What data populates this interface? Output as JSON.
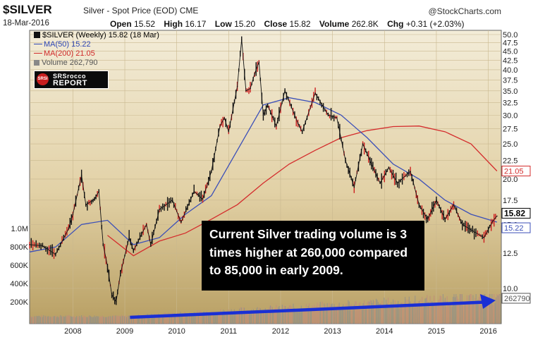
{
  "header": {
    "ticker": "$SILVER",
    "name": "Silver - Spot Price (EOD)",
    "exchange": "CME",
    "brand": "@StockCharts.com",
    "date": "18-Mar-2016",
    "stats": [
      {
        "label": "Open",
        "value": "15.52"
      },
      {
        "label": "High",
        "value": "16.17"
      },
      {
        "label": "Low",
        "value": "15.20"
      },
      {
        "label": "Close",
        "value": "15.82"
      },
      {
        "label": "Volume",
        "value": "262.8K"
      },
      {
        "label": "Chg",
        "value": "+0.31 (+2.03%)"
      }
    ]
  },
  "legend": {
    "main": "$SILVER (Weekly) 15.82 (18 Mar)",
    "ma50": "MA(50) 15.22",
    "ma200": "MA(200) 21.05",
    "volume": "Volume 262,790"
  },
  "logo": {
    "badge": "SRSI",
    "line1": "SRSrocco",
    "line2": "REPORT"
  },
  "annotation": "Current Silver trading volume is 3 times higher at 260,000 compared to 85,000 in early 2009.",
  "colors": {
    "background_top": "#efe7cf",
    "background_bottom": "#b79e62",
    "candle": "#111111",
    "candle_down": "#cc1f1f",
    "ma50": "#3b4fb8",
    "ma200": "#d42d2d",
    "volume": "#8d8d8d",
    "arrow": "#1a2fd4"
  },
  "chart_data": {
    "type": "line",
    "x_axis": {
      "type": "date",
      "ticks": [
        "2008",
        "2009",
        "2010",
        "2011",
        "2012",
        "2013",
        "2014",
        "2015",
        "2016"
      ],
      "range": [
        "2007-03-01",
        "2016-04-01"
      ]
    },
    "y_axis": {
      "side": "right",
      "scale": "log",
      "ticks": [
        "50.0",
        "47.5",
        "45.0",
        "42.5",
        "40.0",
        "37.5",
        "35.0",
        "32.5",
        "30.0",
        "27.5",
        "25.0",
        "22.5",
        "20.0",
        "17.5",
        "15.0",
        "12.5",
        "10.0"
      ],
      "range": [
        8.5,
        51
      ]
    },
    "volume_axis": {
      "side": "left",
      "ticks": [
        "1.0M",
        "800K",
        "600K",
        "400K",
        "200K"
      ]
    },
    "price_labels": {
      "close": "15.82",
      "ma50": "15.22",
      "ma200": "21.05",
      "volume": "262790"
    },
    "grid": true,
    "legend_position": "top-left",
    "series": [
      {
        "name": "$SILVER (Weekly)",
        "points": [
          [
            "2007-03",
            13.2
          ],
          [
            "2007-06",
            13.1
          ],
          [
            "2007-09",
            12.4
          ],
          [
            "2007-12",
            14.6
          ],
          [
            "2008-01",
            16.0
          ],
          [
            "2008-03",
            20.5
          ],
          [
            "2008-04",
            17.0
          ],
          [
            "2008-06",
            17.6
          ],
          [
            "2008-07",
            18.5
          ],
          [
            "2008-08",
            13.2
          ],
          [
            "2008-09",
            11.5
          ],
          [
            "2008-10",
            9.6
          ],
          [
            "2008-11",
            9.2
          ],
          [
            "2008-12",
            11.0
          ],
          [
            "2009-02",
            13.8
          ],
          [
            "2009-03",
            12.7
          ],
          [
            "2009-06",
            15.0
          ],
          [
            "2009-07",
            13.2
          ],
          [
            "2009-09",
            16.5
          ],
          [
            "2009-12",
            17.5
          ],
          [
            "2010-02",
            15.2
          ],
          [
            "2010-05",
            18.5
          ],
          [
            "2010-07",
            17.6
          ],
          [
            "2010-09",
            21.0
          ],
          [
            "2010-11",
            28.0
          ],
          [
            "2010-12",
            29.5
          ],
          [
            "2011-01",
            27.0
          ],
          [
            "2011-03",
            36.0
          ],
          [
            "2011-04",
            48.5
          ],
          [
            "2011-05",
            35.0
          ],
          [
            "2011-06",
            35.5
          ],
          [
            "2011-07",
            39.0
          ],
          [
            "2011-08",
            42.0
          ],
          [
            "2011-09",
            30.0
          ],
          [
            "2011-10",
            32.0
          ],
          [
            "2011-12",
            28.0
          ],
          [
            "2012-02",
            35.0
          ],
          [
            "2012-05",
            28.5
          ],
          [
            "2012-06",
            27.0
          ],
          [
            "2012-09",
            34.5
          ],
          [
            "2012-12",
            30.0
          ],
          [
            "2013-02",
            29.5
          ],
          [
            "2013-04",
            22.5
          ],
          [
            "2013-06",
            19.0
          ],
          [
            "2013-08",
            25.0
          ],
          [
            "2013-10",
            22.0
          ],
          [
            "2013-12",
            19.5
          ],
          [
            "2014-02",
            21.5
          ],
          [
            "2014-04",
            19.5
          ],
          [
            "2014-07",
            21.0
          ],
          [
            "2014-09",
            17.0
          ],
          [
            "2014-11",
            15.5
          ],
          [
            "2015-01",
            17.5
          ],
          [
            "2015-03",
            15.5
          ],
          [
            "2015-05",
            17.0
          ],
          [
            "2015-07",
            15.0
          ],
          [
            "2015-09",
            14.5
          ],
          [
            "2015-12",
            13.8
          ],
          [
            "2016-02",
            15.3
          ],
          [
            "2016-03",
            15.82
          ]
        ]
      },
      {
        "name": "MA(50)",
        "points": [
          [
            "2007-03",
            12.6
          ],
          [
            "2007-09",
            13.0
          ],
          [
            "2008-03",
            15.0
          ],
          [
            "2008-09",
            15.4
          ],
          [
            "2009-03",
            13.2
          ],
          [
            "2009-09",
            13.8
          ],
          [
            "2010-03",
            16.0
          ],
          [
            "2010-09",
            18.0
          ],
          [
            "2011-03",
            24.0
          ],
          [
            "2011-09",
            32.0
          ],
          [
            "2012-03",
            33.5
          ],
          [
            "2012-09",
            32.5
          ],
          [
            "2013-03",
            30.0
          ],
          [
            "2013-09",
            26.0
          ],
          [
            "2014-03",
            22.0
          ],
          [
            "2014-09",
            20.0
          ],
          [
            "2015-03",
            17.5
          ],
          [
            "2015-09",
            16.0
          ],
          [
            "2016-03",
            15.22
          ]
        ]
      },
      {
        "name": "MA(200)",
        "points": [
          [
            "2008-09",
            14.0
          ],
          [
            "2009-03",
            12.3
          ],
          [
            "2009-09",
            13.5
          ],
          [
            "2010-03",
            14.2
          ],
          [
            "2010-09",
            15.5
          ],
          [
            "2011-03",
            17.0
          ],
          [
            "2011-09",
            19.5
          ],
          [
            "2012-03",
            22.0
          ],
          [
            "2012-09",
            24.0
          ],
          [
            "2013-03",
            26.0
          ],
          [
            "2013-09",
            27.2
          ],
          [
            "2014-03",
            27.9
          ],
          [
            "2014-09",
            28.0
          ],
          [
            "2015-03",
            27.0
          ],
          [
            "2015-09",
            25.0
          ],
          [
            "2016-03",
            21.05
          ]
        ]
      }
    ],
    "volume_note": "Volume bars rise from about 85,000 in early 2009 to about 262,790 in 2016"
  }
}
